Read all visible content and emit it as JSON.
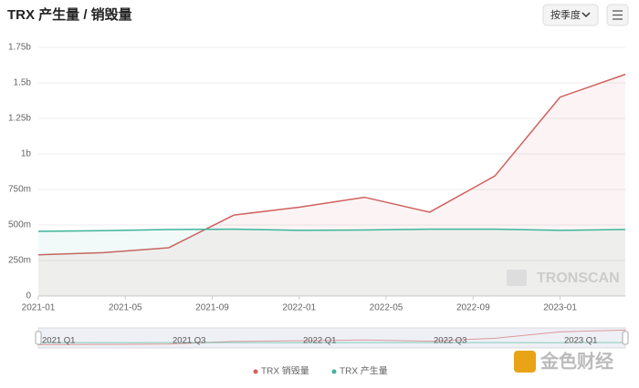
{
  "chart_data": {
    "type": "line",
    "title": "TRX 产生量 / 销毁量",
    "dropdown": "按季度",
    "x": [
      "2021-01",
      "2021-04",
      "2021-07",
      "2021-10",
      "2022-01",
      "2022-04",
      "2022-07",
      "2022-10",
      "2023-01",
      "2023-04"
    ],
    "xlim": [
      "2021-01",
      "2023-04"
    ],
    "xticks": [
      "2021-01",
      "2021-05",
      "2021-09",
      "2022-01",
      "2022-05",
      "2022-09",
      "2023-01"
    ],
    "series": [
      {
        "name": "TRX 销毁量",
        "color": "#d0605e",
        "values": [
          290000000,
          305000000,
          340000000,
          570000000,
          625000000,
          695000000,
          590000000,
          845000000,
          1400000000,
          1560000000
        ]
      },
      {
        "name": "TRX 产生量",
        "color": "#3fb49a",
        "values": [
          455000000,
          460000000,
          468000000,
          470000000,
          462000000,
          465000000,
          470000000,
          470000000,
          462000000,
          468000000
        ]
      }
    ],
    "ylim": [
      0,
      1750000000
    ],
    "yticks": [
      0,
      {
        "value": 250000000,
        "label": "250m"
      },
      {
        "value": 500000000,
        "label": "500m"
      },
      {
        "value": 750000000,
        "label": "750m"
      },
      {
        "value": 1000000000,
        "label": "1b"
      },
      {
        "value": 1250000000,
        "label": "1.25b"
      },
      {
        "value": 1500000000,
        "label": "1.5b"
      },
      {
        "value": 1750000000,
        "label": "1.75b"
      }
    ],
    "grid": true,
    "slider_labels": [
      "2021 Q1",
      "2021 Q3",
      "2022 Q1",
      "2022 Q3",
      "2023 Q1"
    ],
    "watermark": "TRONSCAN",
    "brand": "金色财经"
  }
}
